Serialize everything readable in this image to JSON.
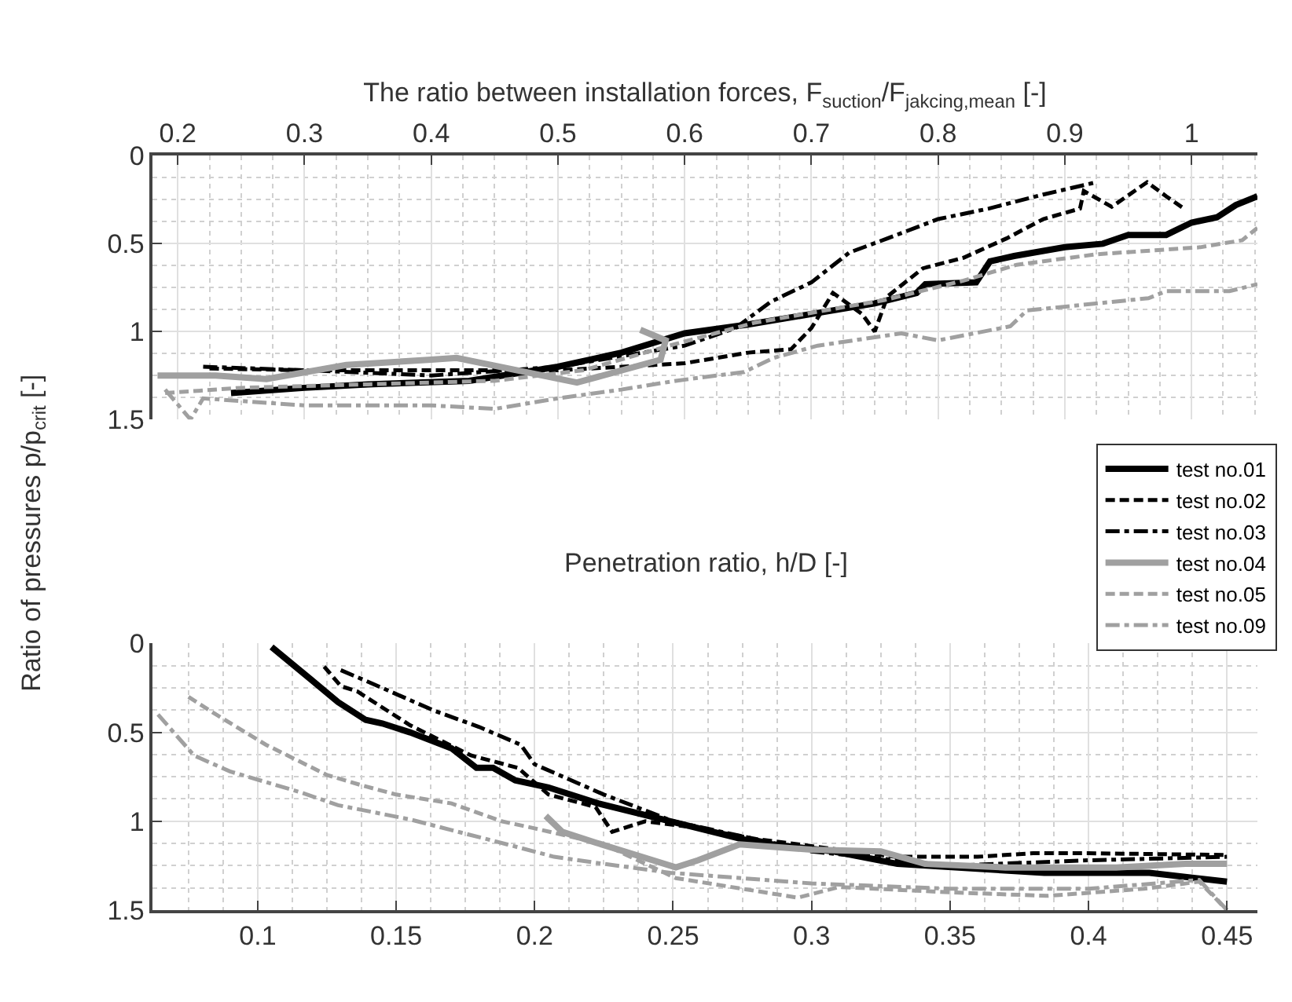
{
  "chart_data": [
    {
      "type": "line",
      "xlabel": "The ratio between installation forces, F$_{suction}$/F$_{jakcing,mean}$ [-]",
      "ylabel": "Ratio of pressures p/p$_{crit}$ [-]",
      "xlim": [
        0.18,
        1.052
      ],
      "xticks": [
        0.2,
        0.3,
        0.4,
        0.5,
        0.6,
        0.7,
        0.8,
        0.9,
        1
      ],
      "ylim": [
        1.5,
        0
      ],
      "yticks": [
        0,
        0.5,
        1,
        1.5
      ],
      "grid": true,
      "legend": "bottom right",
      "series": [
        {
          "name": "test no.01",
          "color": "#000000",
          "line_style": "solid",
          "x": [
            0.242,
            0.3,
            0.35,
            0.43,
            0.5,
            0.55,
            0.6,
            0.65,
            0.7,
            0.75,
            0.783,
            0.79,
            0.83,
            0.841,
            0.86,
            0.9,
            0.93,
            0.95,
            0.98,
            1.0,
            1.02,
            1.035,
            1.052
          ],
          "values": [
            1.35,
            1.32,
            1.3,
            1.28,
            1.2,
            1.12,
            1.01,
            0.96,
            0.9,
            0.84,
            0.78,
            0.73,
            0.72,
            0.6,
            0.57,
            0.52,
            0.5,
            0.45,
            0.45,
            0.38,
            0.35,
            0.28,
            0.23
          ]
        },
        {
          "name": "test no.02",
          "color": "#000000",
          "line_style": "dashed",
          "x": [
            0.225,
            0.3,
            0.4,
            0.5,
            0.6,
            0.65,
            0.684,
            0.7,
            0.717,
            0.74,
            0.75,
            0.76,
            0.788,
            0.82,
            0.854,
            0.883,
            0.912,
            0.915,
            0.937,
            0.965,
            0.98,
            0.994
          ],
          "values": [
            1.21,
            1.22,
            1.22,
            1.22,
            1.18,
            1.12,
            1.1,
            0.98,
            0.78,
            0.9,
            1.0,
            0.8,
            0.64,
            0.58,
            0.47,
            0.36,
            0.3,
            0.2,
            0.29,
            0.15,
            0.23,
            0.3
          ]
        },
        {
          "name": "test no.03",
          "color": "#000000",
          "line_style": "dashdot",
          "x": [
            0.22,
            0.3,
            0.4,
            0.5,
            0.6,
            0.64,
            0.668,
            0.7,
            0.73,
            0.76,
            0.8,
            0.84,
            0.883,
            0.925
          ],
          "values": [
            1.2,
            1.22,
            1.25,
            1.2,
            1.08,
            0.98,
            0.83,
            0.72,
            0.55,
            0.47,
            0.36,
            0.3,
            0.22,
            0.15
          ]
        },
        {
          "name": "test no.04",
          "color": "#a0a0a0",
          "line_style": "solid",
          "x": [
            0.184,
            0.23,
            0.27,
            0.333,
            0.4,
            0.42,
            0.515,
            0.581,
            0.585,
            0.565
          ],
          "values": [
            1.25,
            1.25,
            1.27,
            1.19,
            1.16,
            1.15,
            1.29,
            1.16,
            1.05,
            0.99
          ]
        },
        {
          "name": "test no.05",
          "color": "#a0a0a0",
          "line_style": "dashed",
          "x": [
            0.19,
            0.25,
            0.35,
            0.45,
            0.52,
            0.593,
            0.655,
            0.758,
            0.82,
            0.862,
            0.925,
            1.007,
            1.04,
            1.052
          ],
          "values": [
            1.35,
            1.32,
            1.3,
            1.28,
            1.22,
            1.07,
            0.95,
            0.82,
            0.71,
            0.62,
            0.56,
            0.52,
            0.48,
            0.41
          ]
        },
        {
          "name": "test no.09",
          "color": "#a0a0a0",
          "line_style": "dashdot",
          "x": [
            0.19,
            0.21,
            0.22,
            0.3,
            0.4,
            0.45,
            0.5,
            0.55,
            0.593,
            0.647,
            0.67,
            0.705,
            0.771,
            0.8,
            0.857,
            0.87,
            0.966,
            0.98,
            1.03,
            1.052
          ],
          "values": [
            1.33,
            1.5,
            1.38,
            1.42,
            1.42,
            1.44,
            1.38,
            1.33,
            1.28,
            1.23,
            1.15,
            1.08,
            1.01,
            1.05,
            0.97,
            0.88,
            0.81,
            0.77,
            0.77,
            0.73
          ]
        }
      ]
    },
    {
      "type": "line",
      "title": "Penetration ratio, h/D [-]",
      "xlim": [
        0.062,
        0.461
      ],
      "xticks": [
        0.1,
        0.15,
        0.2,
        0.25,
        0.3,
        0.35,
        0.4,
        0.45
      ],
      "ylim": [
        1.5,
        0
      ],
      "yticks": [
        0,
        0.5,
        1,
        1.5
      ],
      "grid": true,
      "series": [
        {
          "color": "#000000",
          "line_style": "solid",
          "x": [
            0.105,
            0.119,
            0.129,
            0.139,
            0.145,
            0.155,
            0.17,
            0.179,
            0.185,
            0.193,
            0.205,
            0.223,
            0.249,
            0.28,
            0.308,
            0.331,
            0.384,
            0.422,
            0.45
          ],
          "values": [
            0.02,
            0.2,
            0.33,
            0.43,
            0.45,
            0.5,
            0.59,
            0.7,
            0.7,
            0.77,
            0.81,
            0.9,
            1.0,
            1.12,
            1.17,
            1.24,
            1.29,
            1.29,
            1.34
          ]
        },
        {
          "color": "#000000",
          "line_style": "dashed",
          "x": [
            0.124,
            0.13,
            0.136,
            0.155,
            0.177,
            0.194,
            0.205,
            0.222,
            0.228,
            0.24,
            0.255,
            0.28,
            0.33,
            0.36,
            0.38,
            0.4,
            0.45
          ],
          "values": [
            0.13,
            0.24,
            0.27,
            0.46,
            0.63,
            0.7,
            0.85,
            0.92,
            1.06,
            1.0,
            1.03,
            1.1,
            1.2,
            1.2,
            1.18,
            1.18,
            1.19
          ]
        },
        {
          "color": "#000000",
          "line_style": "dashdot",
          "x": [
            0.13,
            0.142,
            0.164,
            0.18,
            0.195,
            0.2,
            0.225,
            0.25,
            0.3,
            0.35,
            0.4,
            0.45
          ],
          "values": [
            0.15,
            0.23,
            0.38,
            0.47,
            0.57,
            0.68,
            0.85,
            1.0,
            1.17,
            1.25,
            1.22,
            1.2
          ]
        },
        {
          "color": "#a0a0a0",
          "line_style": "solid",
          "x": [
            0.204,
            0.21,
            0.222,
            0.251,
            0.259,
            0.274,
            0.3,
            0.325,
            0.341,
            0.37,
            0.41,
            0.435,
            0.45
          ],
          "values": [
            0.97,
            1.06,
            1.12,
            1.26,
            1.22,
            1.13,
            1.16,
            1.17,
            1.24,
            1.26,
            1.26,
            1.24,
            1.24
          ]
        },
        {
          "color": "#a0a0a0",
          "line_style": "dashed",
          "x": [
            0.075,
            0.085,
            0.103,
            0.125,
            0.138,
            0.15,
            0.17,
            0.188,
            0.2,
            0.225,
            0.251,
            0.295,
            0.31,
            0.35,
            0.385,
            0.42,
            0.44,
            0.45
          ],
          "values": [
            0.3,
            0.4,
            0.57,
            0.74,
            0.8,
            0.85,
            0.9,
            1.0,
            1.04,
            1.13,
            1.32,
            1.43,
            1.37,
            1.4,
            1.42,
            1.38,
            1.34,
            1.5
          ]
        },
        {
          "color": "#a0a0a0",
          "line_style": "dashdot",
          "x": [
            0.064,
            0.077,
            0.09,
            0.103,
            0.116,
            0.129,
            0.155,
            0.17,
            0.19,
            0.207,
            0.225,
            0.249,
            0.3,
            0.35,
            0.4,
            0.44,
            0.45
          ],
          "values": [
            0.4,
            0.63,
            0.72,
            0.78,
            0.84,
            0.91,
            0.99,
            1.05,
            1.13,
            1.2,
            1.24,
            1.29,
            1.35,
            1.38,
            1.38,
            1.33,
            1.5
          ]
        }
      ]
    }
  ]
}
